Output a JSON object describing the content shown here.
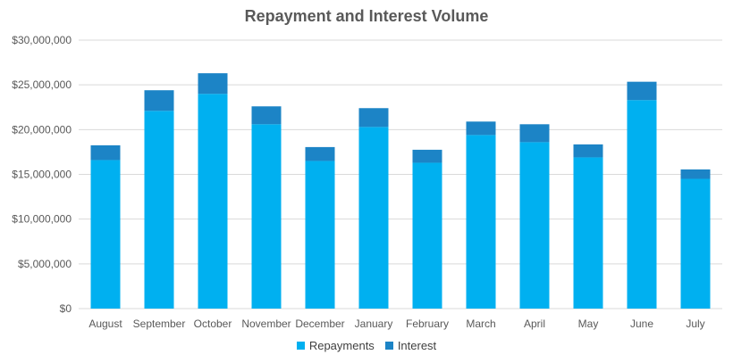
{
  "chart_data": {
    "type": "bar",
    "stacked": true,
    "title": "Repayment and Interest Volume",
    "xlabel": "",
    "ylabel": "",
    "ylim": [
      0,
      30000000
    ],
    "yticks": [
      0,
      5000000,
      10000000,
      15000000,
      20000000,
      25000000,
      30000000
    ],
    "ytick_labels": [
      "$0",
      "$5,000,000",
      "$10,000,000",
      "$15,000,000",
      "$20,000,000",
      "$25,000,000",
      "$30,000,000"
    ],
    "grid": true,
    "legend_position": "bottom",
    "categories": [
      "August",
      "September",
      "October",
      "November",
      "December",
      "January",
      "February",
      "March",
      "April",
      "May",
      "June",
      "July"
    ],
    "series": [
      {
        "name": "Repayments",
        "color": "#00B0F0",
        "values": [
          16600000,
          22100000,
          24000000,
          20600000,
          16500000,
          20300000,
          16300000,
          19400000,
          18600000,
          16900000,
          23300000,
          14500000
        ]
      },
      {
        "name": "Interest",
        "color": "#1C84C6",
        "values": [
          1650000,
          2300000,
          2300000,
          2000000,
          1550000,
          2100000,
          1450000,
          1500000,
          2000000,
          1450000,
          2050000,
          1050000
        ]
      }
    ]
  }
}
